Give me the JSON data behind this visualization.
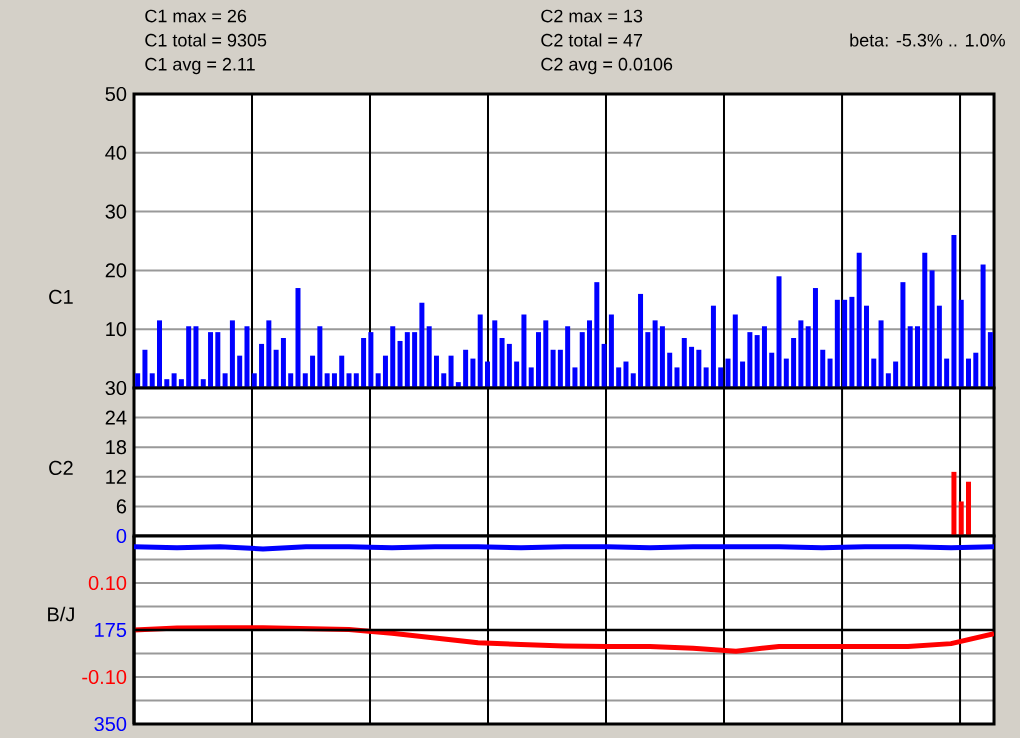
{
  "chart_data": [
    {
      "type": "bar",
      "ylabel": "C1",
      "color": "#0000ff",
      "grid": true,
      "tick_labels": "y",
      "annotations": [
        "C1 max = 26",
        "C1 total = 9305",
        "C1 avg = 2.11"
      ],
      "categories": [
        null,
        null,
        null,
        null,
        null,
        null,
        null,
        null,
        null,
        null,
        null,
        null,
        null,
        null,
        null,
        null,
        null,
        null,
        null,
        null,
        null,
        null,
        null,
        null,
        null,
        null,
        null,
        null,
        null,
        null,
        null,
        null,
        null,
        null,
        null,
        null,
        null,
        null,
        null,
        null,
        null,
        null,
        null,
        null,
        null,
        null,
        null,
        null,
        null,
        null,
        null,
        null,
        null,
        null,
        null,
        null,
        null,
        null,
        null,
        null,
        null,
        null,
        null,
        null,
        null,
        null,
        null,
        null,
        null,
        null,
        null,
        null,
        null,
        null,
        null,
        null,
        null,
        null,
        null,
        null,
        null,
        null,
        null,
        null,
        null,
        null,
        null,
        null,
        null,
        null,
        null,
        null,
        null,
        null,
        null,
        null,
        null,
        null,
        null,
        null,
        null,
        null,
        null,
        null,
        null,
        null,
        null,
        null,
        null,
        null,
        null,
        null,
        null,
        null,
        null,
        null,
        null,
        null
      ],
      "ylim": [
        0,
        50
      ],
      "yticks": [
        {
          "value": 0,
          "label": null
        },
        10,
        20,
        30,
        40,
        50
      ],
      "values": [
        2.5,
        6.5,
        2.5,
        11.5,
        1.5,
        2.5,
        1.5,
        10.5,
        10.5,
        1.5,
        9.5,
        9.5,
        2.5,
        11.5,
        5.5,
        10.5,
        2.5,
        7.5,
        11.5,
        6.5,
        8.5,
        2.5,
        17,
        2.5,
        5.5,
        10.5,
        2.5,
        2.5,
        5.5,
        2.5,
        2.5,
        8.5,
        9.5,
        2.5,
        5.5,
        10.5,
        8,
        9.5,
        9.5,
        14.5,
        10.5,
        5.5,
        2.5,
        5.5,
        1,
        6.5,
        5,
        12.5,
        4.5,
        11.5,
        8.5,
        7.5,
        4.5,
        12.5,
        3.5,
        9.5,
        11.5,
        6.5,
        6.5,
        10.5,
        3.5,
        9.5,
        11.5,
        18,
        7.5,
        12.5,
        3.5,
        4.5,
        2.5,
        16,
        9.5,
        11.5,
        10.5,
        6,
        3.5,
        8.5,
        7,
        6.5,
        3.5,
        14,
        3.5,
        5,
        12.5,
        4.5,
        9.5,
        9,
        10.5,
        6,
        19,
        5,
        8.5,
        11.5,
        10.5,
        17,
        6.5,
        5,
        15,
        15,
        15.5,
        23,
        14,
        5,
        11.5,
        2.5,
        4.5,
        18,
        10.5,
        10.5,
        23,
        20,
        14,
        5,
        26,
        15,
        5,
        6,
        21,
        9.5
      ]
    },
    {
      "type": "bar",
      "ylabel": "C2",
      "color": "#ff0000",
      "grid": true,
      "tick_labels": "y",
      "annotations": [
        "C2 max = 13",
        "C2 total = 47",
        "C2 avg = 0.0106"
      ],
      "categories": [
        null,
        null,
        null,
        null,
        null,
        null,
        null,
        null,
        null,
        null,
        null,
        null,
        null,
        null,
        null,
        null,
        null,
        null,
        null,
        null,
        null,
        null,
        null,
        null,
        null,
        null,
        null,
        null,
        null,
        null,
        null,
        null,
        null,
        null,
        null,
        null,
        null,
        null,
        null,
        null,
        null,
        null,
        null,
        null,
        null,
        null,
        null,
        null,
        null,
        null,
        null,
        null,
        null,
        null,
        null,
        null,
        null,
        null,
        null,
        null,
        null,
        null,
        null,
        null,
        null,
        null,
        null,
        null,
        null,
        null,
        null,
        null,
        null,
        null,
        null,
        null,
        null,
        null,
        null,
        null,
        null,
        null,
        null,
        null,
        null,
        null,
        null,
        null,
        null,
        null,
        null,
        null,
        null,
        null,
        null,
        null,
        null,
        null,
        null,
        null,
        null,
        null,
        null,
        null,
        null,
        null,
        null,
        null,
        null,
        null,
        null,
        null,
        null,
        null,
        null,
        null,
        null,
        null
      ],
      "ylim": [
        0,
        30
      ],
      "yticks": [
        {
          "value": 0,
          "label": null
        },
        6,
        12,
        18,
        24,
        30
      ],
      "values": [
        null,
        null,
        null,
        null,
        null,
        null,
        null,
        null,
        null,
        null,
        null,
        null,
        null,
        null,
        null,
        null,
        null,
        null,
        null,
        null,
        null,
        null,
        null,
        null,
        null,
        null,
        null,
        null,
        null,
        null,
        null,
        null,
        null,
        null,
        null,
        null,
        null,
        null,
        null,
        null,
        null,
        null,
        null,
        null,
        null,
        null,
        null,
        null,
        null,
        null,
        null,
        null,
        null,
        null,
        null,
        null,
        null,
        null,
        null,
        null,
        null,
        null,
        null,
        null,
        null,
        null,
        null,
        null,
        null,
        null,
        null,
        null,
        null,
        null,
        null,
        null,
        null,
        null,
        null,
        null,
        null,
        null,
        null,
        null,
        null,
        null,
        null,
        null,
        null,
        null,
        null,
        null,
        null,
        null,
        null,
        null,
        null,
        null,
        null,
        null,
        null,
        null,
        null,
        null,
        null,
        null,
        null,
        null,
        null,
        null,
        null,
        null,
        13,
        7,
        11,
        null,
        null,
        null
      ]
    },
    {
      "type": "line",
      "ylabel": "B/J",
      "grid": true,
      "tick_labels": "y",
      "annotations": [
        "beta: -5.3% .. 1.0%"
      ],
      "categories": [
        null,
        null,
        null,
        null,
        null,
        null,
        null,
        null,
        null,
        null,
        null,
        null,
        null,
        null,
        null,
        null,
        null,
        null,
        null,
        null,
        null
      ],
      "ylim": [
        -0.2,
        0.2
      ],
      "yticks": [
        {
          "value": -0.15,
          "label": null
        },
        {
          "value": -0.1,
          "label": "-0.10"
        },
        {
          "value": -0.05,
          "label": null
        },
        {
          "value": 0.05,
          "label": null
        },
        {
          "value": 0.1,
          "label": "0.10"
        },
        {
          "value": 0.15,
          "label": null
        }
      ],
      "y2lim": [
        350,
        0
      ],
      "y2ticks": [
        0,
        175,
        350
      ],
      "ref_lines": [
        {
          "axis": "y",
          "value": 0,
          "color": "#000000"
        }
      ],
      "series": [
        {
          "color": "#ff0000",
          "values": [
            0,
            0.004,
            0.005,
            0.005,
            0.003,
            0.001,
            -0.007,
            -0.017,
            -0.027,
            -0.031,
            -0.034,
            -0.035,
            -0.035,
            -0.039,
            -0.045,
            -0.035,
            -0.035,
            -0.035,
            -0.035,
            -0.029,
            -0.008
          ]
        },
        {
          "color": "#0000ff",
          "axis": "y2",
          "values": [
            20,
            22,
            20,
            24,
            20,
            20,
            22,
            20,
            20,
            22,
            20,
            20,
            22,
            20,
            20,
            20,
            22,
            20,
            20,
            22,
            20
          ]
        }
      ]
    }
  ]
}
